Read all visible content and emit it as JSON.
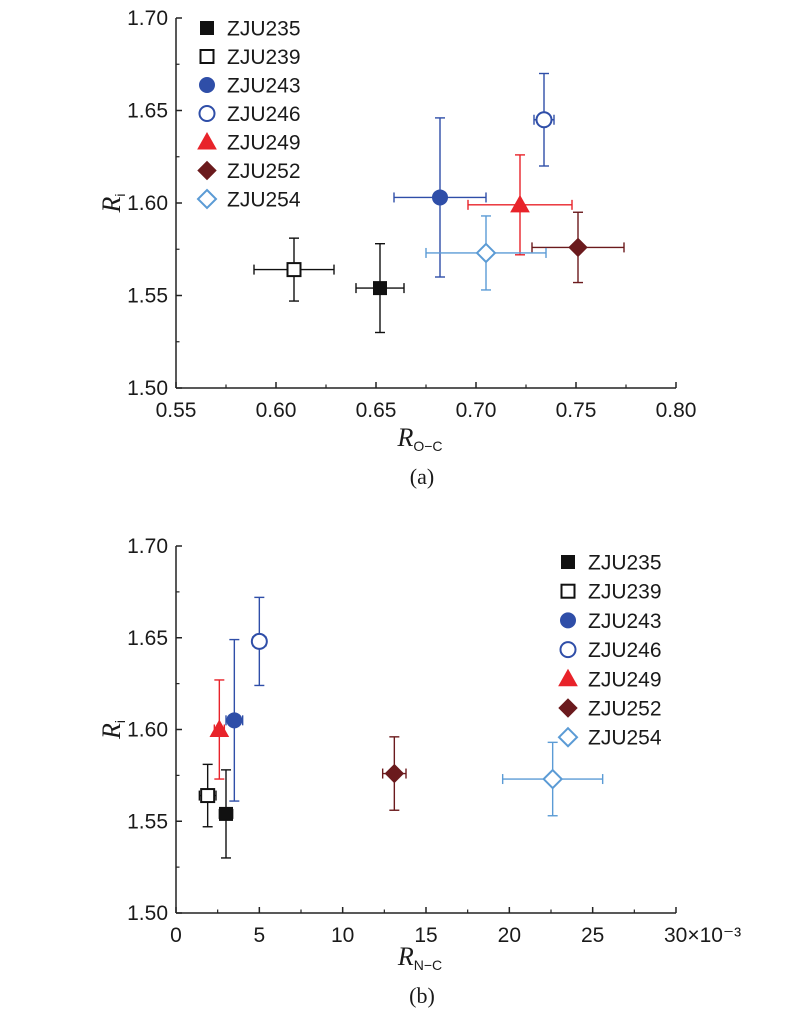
{
  "chart_data": [
    {
      "type": "scatter",
      "panel_label": "(a)",
      "xlabel": "R",
      "xlabel_sub": "O−C",
      "ylabel": "R",
      "ylabel_sub": "i",
      "xlim": [
        0.55,
        0.8
      ],
      "ylim": [
        1.5,
        1.7
      ],
      "xticks": [
        "0.55",
        "0.60",
        "0.65",
        "0.70",
        "0.75",
        "0.80"
      ],
      "yticks": [
        "1.50",
        "1.55",
        "1.60",
        "1.65",
        "1.70"
      ],
      "x_multiplier": "",
      "legend_position": "top-left",
      "series": [
        {
          "name": "ZJU235",
          "marker": "square",
          "filled": true,
          "color": "#111111",
          "x": 0.652,
          "y": 1.554,
          "xerr": 0.012,
          "yerr": 0.024
        },
        {
          "name": "ZJU239",
          "marker": "square",
          "filled": false,
          "color": "#111111",
          "x": 0.609,
          "y": 1.564,
          "xerr": 0.02,
          "yerr": 0.017
        },
        {
          "name": "ZJU243",
          "marker": "circle",
          "filled": true,
          "color": "#2f4ea8",
          "x": 0.682,
          "y": 1.603,
          "xerr": 0.023,
          "yerr": 0.043
        },
        {
          "name": "ZJU246",
          "marker": "circle",
          "filled": false,
          "color": "#2f4ea8",
          "x": 0.734,
          "y": 1.645,
          "xerr": 0.005,
          "yerr": 0.025
        },
        {
          "name": "ZJU249",
          "marker": "triangle",
          "filled": true,
          "color": "#e8232a",
          "x": 0.722,
          "y": 1.599,
          "xerr": 0.026,
          "yerr": 0.027
        },
        {
          "name": "ZJU252",
          "marker": "diamond",
          "filled": true,
          "color": "#6b1a1d",
          "x": 0.751,
          "y": 1.576,
          "xerr": 0.023,
          "yerr": 0.019
        },
        {
          "name": "ZJU254",
          "marker": "diamond",
          "filled": false,
          "color": "#5b9bd5",
          "x": 0.705,
          "y": 1.573,
          "xerr": 0.03,
          "yerr": 0.02
        }
      ]
    },
    {
      "type": "scatter",
      "panel_label": "(b)",
      "xlabel": "R",
      "xlabel_sub": "N−C",
      "ylabel": "R",
      "ylabel_sub": "i",
      "xlim": [
        0,
        30
      ],
      "ylim": [
        1.5,
        1.7
      ],
      "xticks": [
        "0",
        "5",
        "10",
        "15",
        "20",
        "25"
      ],
      "yticks": [
        "1.50",
        "1.55",
        "1.60",
        "1.65",
        "1.70"
      ],
      "x_multiplier": "30×10⁻³",
      "legend_position": "top-right",
      "series": [
        {
          "name": "ZJU235",
          "marker": "square",
          "filled": true,
          "color": "#111111",
          "x": 3.0,
          "y": 1.554,
          "xerr": 0.4,
          "yerr": 0.024
        },
        {
          "name": "ZJU239",
          "marker": "square",
          "filled": false,
          "color": "#111111",
          "x": 1.9,
          "y": 1.564,
          "xerr": 0.5,
          "yerr": 0.017
        },
        {
          "name": "ZJU243",
          "marker": "circle",
          "filled": true,
          "color": "#2f4ea8",
          "x": 3.5,
          "y": 1.605,
          "xerr": 0.5,
          "yerr": 0.044
        },
        {
          "name": "ZJU246",
          "marker": "circle",
          "filled": false,
          "color": "#2f4ea8",
          "x": 5.0,
          "y": 1.648,
          "xerr": 0.4,
          "yerr": 0.024
        },
        {
          "name": "ZJU249",
          "marker": "triangle",
          "filled": true,
          "color": "#e8232a",
          "x": 2.6,
          "y": 1.6,
          "xerr": 0.3,
          "yerr": 0.027
        },
        {
          "name": "ZJU252",
          "marker": "diamond",
          "filled": true,
          "color": "#6b1a1d",
          "x": 13.1,
          "y": 1.576,
          "xerr": 0.7,
          "yerr": 0.02
        },
        {
          "name": "ZJU254",
          "marker": "diamond",
          "filled": false,
          "color": "#5b9bd5",
          "x": 22.6,
          "y": 1.573,
          "xerr": 3.0,
          "yerr": 0.02
        }
      ]
    }
  ]
}
